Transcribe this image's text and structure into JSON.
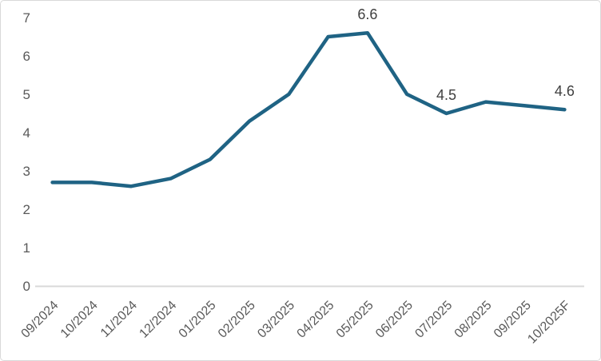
{
  "chart": {
    "colors": {
      "line": "#1f6384",
      "axis_line": "#d9d9d9",
      "tick_label": "#595959",
      "data_label": "#3f3f3f",
      "background": "#ffffff",
      "border": "#d9d9d9"
    }
  },
  "chart_data": {
    "type": "line",
    "title": "",
    "xlabel": "",
    "ylabel": "",
    "categories": [
      "09/2024",
      "10/2024",
      "11/2024",
      "12/2024",
      "01/2025",
      "02/2025",
      "03/2025",
      "04/2025",
      "05/2025",
      "06/2025",
      "07/2025",
      "08/2025",
      "09/2025",
      "10/2025F"
    ],
    "series": [
      {
        "name": "value",
        "values": [
          2.7,
          2.7,
          2.6,
          2.8,
          3.3,
          4.3,
          5.0,
          6.5,
          6.6,
          5.0,
          4.5,
          4.8,
          4.7,
          4.6
        ]
      }
    ],
    "point_labels": [
      "",
      "",
      "",
      "",
      "",
      "",
      "",
      "",
      "6.6",
      "",
      "4.5",
      "",
      "",
      "4.6"
    ],
    "ylim": [
      0,
      7
    ],
    "ytick_step": 1,
    "ytick_labels": [
      "0",
      "1",
      "2",
      "3",
      "4",
      "5",
      "6",
      "7"
    ],
    "grid": false,
    "legend": "none",
    "x_label_rotation_deg": -45
  }
}
